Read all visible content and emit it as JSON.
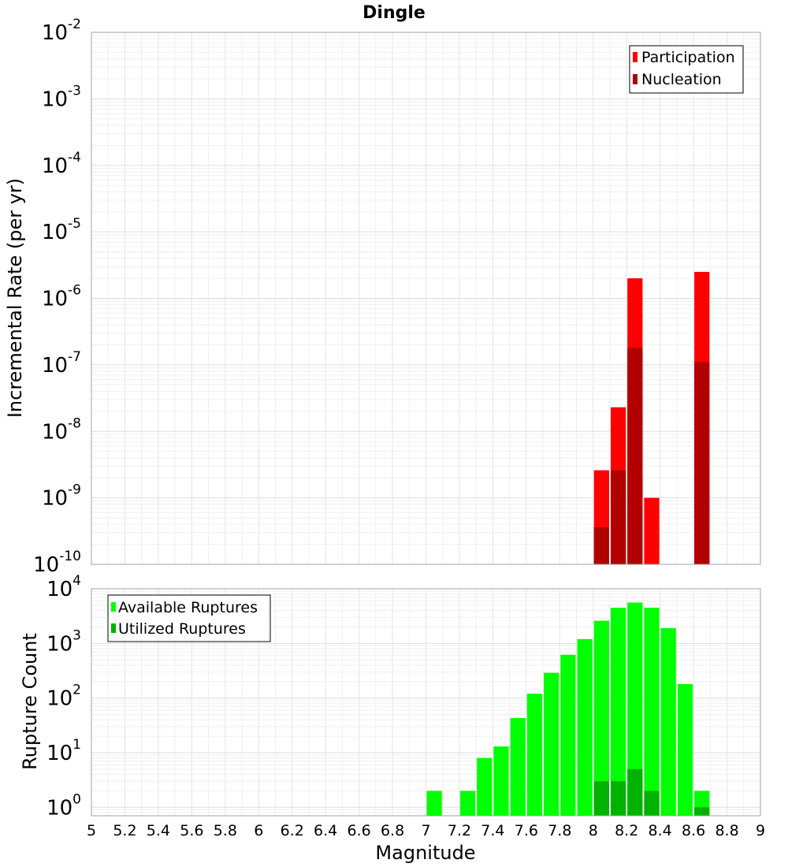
{
  "chart_data": [
    {
      "type": "bar",
      "title": "Dingle",
      "ylabel": "Incremental Rate (per yr)",
      "yscale": "log",
      "ylim": [
        1e-10,
        0.01
      ],
      "xlim": [
        5,
        9
      ],
      "bin_width": 0.1,
      "legend_position": "top-right",
      "series": [
        {
          "name": "Participation",
          "color": "#ff0000",
          "x": [
            8.05,
            8.15,
            8.25,
            8.35,
            8.65
          ],
          "values": [
            2.6e-09,
            2.3e-08,
            2e-06,
            1e-09,
            2.5e-06
          ]
        },
        {
          "name": "Nucleation",
          "color": "#b20000",
          "x": [
            8.05,
            8.15,
            8.25,
            8.65
          ],
          "values": [
            3.6e-10,
            2.6e-09,
            1.8e-07,
            1.1e-07
          ]
        }
      ]
    },
    {
      "type": "bar",
      "xlabel": "Magnitude",
      "ylabel": "Rupture Count",
      "yscale": "log",
      "ylim": [
        0.7,
        10000
      ],
      "xlim": [
        5,
        9
      ],
      "bin_width": 0.1,
      "legend_position": "top-left",
      "series": [
        {
          "name": "Available Ruptures",
          "color": "#00ff00",
          "x": [
            7.05,
            7.25,
            7.35,
            7.45,
            7.55,
            7.65,
            7.75,
            7.85,
            7.95,
            8.05,
            8.15,
            8.25,
            8.35,
            8.45,
            8.55,
            8.65
          ],
          "values": [
            2,
            2,
            8,
            13,
            43,
            120,
            290,
            620,
            1200,
            2600,
            4500,
            5600,
            4500,
            1900,
            180,
            2
          ]
        },
        {
          "name": "Utilized Ruptures",
          "color": "#00b200",
          "x": [
            8.05,
            8.15,
            8.25,
            8.35,
            8.65
          ],
          "values": [
            3,
            3,
            5,
            2,
            1
          ]
        }
      ]
    }
  ],
  "ticks": {
    "rate_exponents": [
      "-2",
      "-3",
      "-4",
      "-5",
      "-6",
      "-7",
      "-8",
      "-9",
      "-10"
    ],
    "count_exponents": [
      "4",
      "3",
      "2",
      "1",
      "0"
    ],
    "base": "10",
    "x_labels": [
      "5",
      "5.2",
      "5.4",
      "5.6",
      "5.8",
      "6",
      "6.2",
      "6.4",
      "6.6",
      "6.8",
      "7",
      "7.2",
      "7.4",
      "7.6",
      "7.8",
      "8",
      "8.2",
      "8.4",
      "8.6",
      "8.8",
      "9"
    ]
  }
}
